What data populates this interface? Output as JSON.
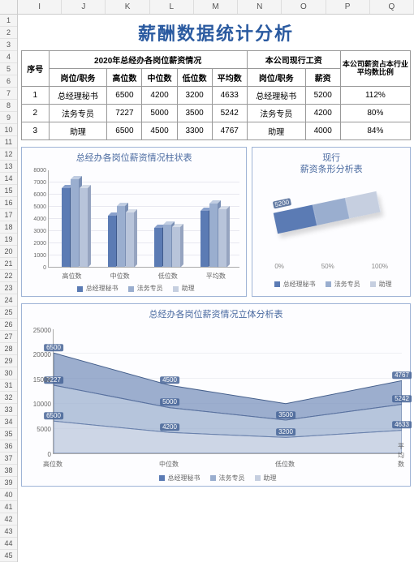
{
  "columns": [
    "I",
    "J",
    "K",
    "L",
    "M",
    "N",
    "O",
    "P",
    "Q"
  ],
  "row_count": 45,
  "title": "薪酬数据统计分析",
  "table": {
    "header_row1": {
      "seq": "序号",
      "group1": "2020年总经办各岗位薪资情况",
      "group2": "本公司现行工资",
      "ratio": "本公司薪资占本行业平均数比例"
    },
    "header_row2": [
      "岗位/职务",
      "高位数",
      "中位数",
      "低位数",
      "平均数",
      "岗位/职务",
      "薪资"
    ],
    "rows": [
      {
        "seq": "1",
        "post": "总经理秘书",
        "high": "6500",
        "mid": "4200",
        "low": "3200",
        "avg": "4633",
        "post2": "总经理秘书",
        "salary": "5200",
        "ratio": "112%"
      },
      {
        "seq": "2",
        "post": "法务专员",
        "high": "7227",
        "mid": "5000",
        "low": "3500",
        "avg": "5242",
        "post2": "法务专员",
        "salary": "4200",
        "ratio": "80%"
      },
      {
        "seq": "3",
        "post": "助理",
        "high": "6500",
        "mid": "4500",
        "low": "3300",
        "avg": "4767",
        "post2": "助理",
        "salary": "4000",
        "ratio": "84%"
      }
    ]
  },
  "bar_chart": {
    "title": "总经办各岗位薪资情况柱状表",
    "ymax": 8000,
    "ystep": 1000,
    "categories": [
      "高位数",
      "中位数",
      "低位数",
      "平均数"
    ],
    "series": [
      {
        "name": "总经理秘书",
        "color": "#5b7bb4",
        "color_top": "#8aa1cc",
        "color_side": "#3f5a8c",
        "values": [
          6500,
          4200,
          3200,
          4633
        ]
      },
      {
        "name": "法务专员",
        "color": "#9aaecf",
        "color_top": "#c0cde2",
        "color_side": "#7a8fb4",
        "values": [
          7227,
          5000,
          3500,
          5242
        ]
      },
      {
        "name": "助理",
        "color": "#b8c4da",
        "color_top": "#d6dde9",
        "color_side": "#96a4c0",
        "values": [
          6500,
          4500,
          3300,
          4767
        ]
      }
    ]
  },
  "stack_chart": {
    "title_line1": "现行",
    "title_line2": "薪资条形分析表",
    "total": 13400,
    "segments": [
      {
        "name": "总经理秘书",
        "value": 5200,
        "color": "#5b7bb4",
        "label": "5200"
      },
      {
        "name": "法务专员",
        "value": 4200,
        "color": "#9aaecf",
        "label": ""
      },
      {
        "name": "助理",
        "value": 4000,
        "color": "#c6cfe0",
        "label": ""
      }
    ],
    "pct_labels": [
      "0%",
      "50%",
      "100%"
    ]
  },
  "area_chart": {
    "title": "总经办各岗位薪资情况立体分析表",
    "ymax": 25000,
    "ystep": 5000,
    "categories": [
      "高位数",
      "中位数",
      "低位数",
      "平均数"
    ],
    "series": [
      {
        "name": "总经理秘书",
        "color": "#bcc8de",
        "edge": "#6a82ad",
        "values": [
          6500,
          4200,
          3200,
          4633
        ]
      },
      {
        "name": "法务专员",
        "color": "#9db1d0",
        "edge": "#5a72a0",
        "values": [
          7227,
          5000,
          3500,
          5242
        ]
      },
      {
        "name": "助理",
        "color": "#7b93be",
        "edge": "#46608c",
        "values": [
          6500,
          4500,
          3300,
          4767
        ]
      }
    ],
    "stack_points": {
      "high": [
        6500,
        13727,
        20227
      ],
      "mid": [
        4200,
        9200,
        13700
      ],
      "low": [
        3200,
        6700,
        10000
      ],
      "avg": [
        4633,
        9875,
        14642
      ]
    },
    "labels_left": [
      "6500",
      "7227",
      "6500"
    ],
    "labels_mid": [
      "5000",
      "4500",
      "4200"
    ],
    "labels_low": [
      "3500",
      "3200"
    ],
    "labels_right": [
      "4767",
      "5242",
      "4633"
    ]
  },
  "legend_names": [
    "总经理秘书",
    "法务专员",
    "助理"
  ],
  "legend_colors": [
    "#5b7bb4",
    "#9aaecf",
    "#c6cfe0"
  ]
}
